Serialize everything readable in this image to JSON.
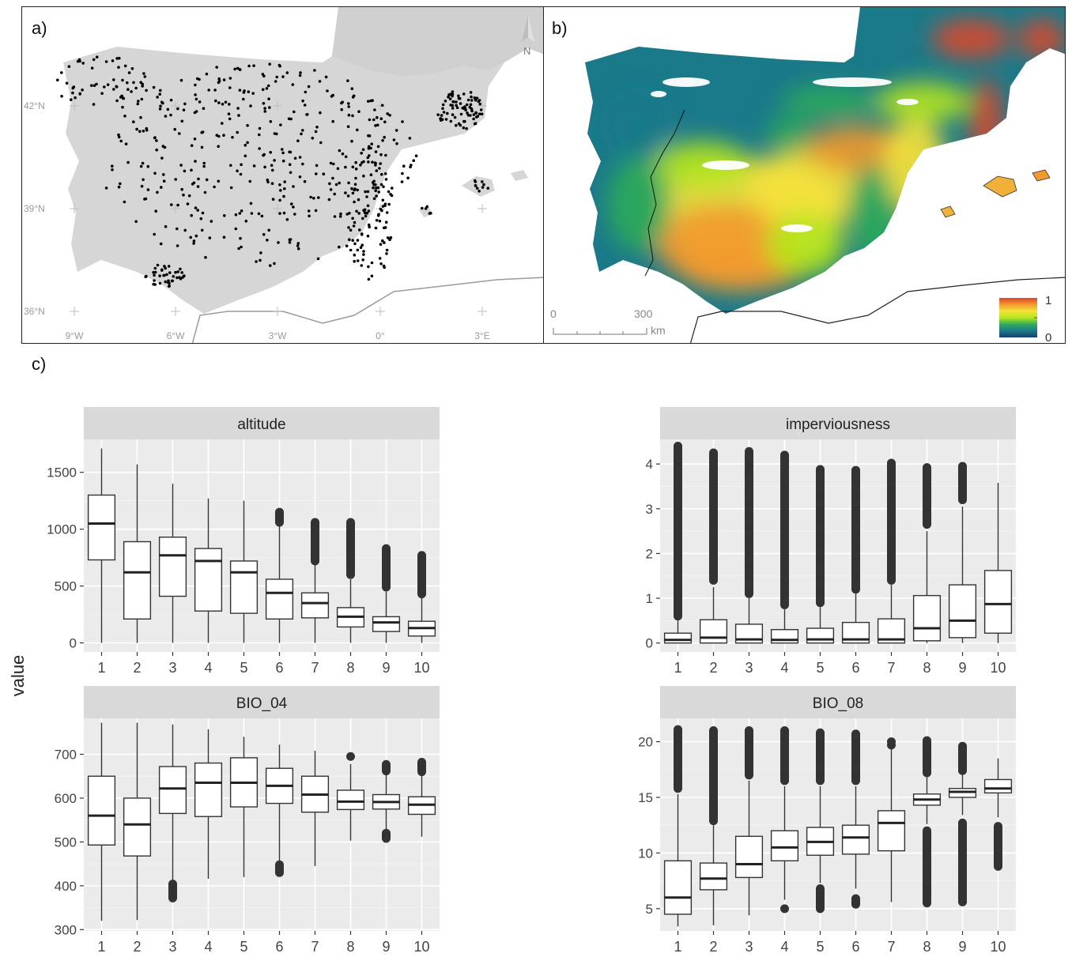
{
  "panel_a": {
    "label": "a)",
    "north_label": "N",
    "lat_labels": [
      "42°N",
      "39°N",
      "36°N"
    ],
    "lon_labels": [
      "9°W",
      "6°W",
      "3°W",
      "0°",
      "3°E"
    ]
  },
  "panel_b": {
    "label": "b)",
    "scale_labels": [
      "0",
      "300"
    ],
    "scale_unit": "km",
    "legend_max": "1",
    "legend_min": "0"
  },
  "panel_c": {
    "label": "c)",
    "y_title": "value"
  },
  "colors": {
    "facet_bg": "#ebebeb",
    "strip_bg": "#d9d9d9",
    "land": "#d6d6d6",
    "ramp": [
      "#14406b",
      "#1b7a8a",
      "#2eab5a",
      "#b5e61d",
      "#f5e23b",
      "#f29a2e",
      "#d9482b"
    ]
  },
  "chart_data": [
    {
      "type": "box",
      "facet": "altitude",
      "categories": [
        "1",
        "2",
        "3",
        "4",
        "5",
        "6",
        "7",
        "8",
        "9",
        "10"
      ],
      "ylim": [
        -80,
        1790
      ],
      "yticks": [
        0,
        500,
        1000,
        1500
      ],
      "boxes": [
        {
          "q1": 730,
          "median": 1050,
          "q3": 1300,
          "lo": 0,
          "hi": 1710,
          "outliers": []
        },
        {
          "q1": 210,
          "median": 620,
          "q3": 890,
          "lo": 0,
          "hi": 1570,
          "outliers": []
        },
        {
          "q1": 410,
          "median": 770,
          "q3": 930,
          "lo": 0,
          "hi": 1400,
          "outliers": []
        },
        {
          "q1": 280,
          "median": 720,
          "q3": 830,
          "lo": 0,
          "hi": 1270,
          "outliers": []
        },
        {
          "q1": 260,
          "median": 620,
          "q3": 720,
          "lo": 0,
          "hi": 1250,
          "outliers": []
        },
        {
          "q1": 210,
          "median": 440,
          "q3": 560,
          "lo": 0,
          "hi": 1030,
          "outliers": [
            1060,
            1090,
            1120,
            1150
          ]
        },
        {
          "q1": 220,
          "median": 350,
          "q3": 440,
          "lo": 0,
          "hi": 690,
          "outliers": [
            720,
            760,
            800,
            840,
            880,
            920,
            960,
            1000,
            1060
          ]
        },
        {
          "q1": 140,
          "median": 230,
          "q3": 310,
          "lo": 0,
          "hi": 560,
          "outliers": [
            600,
            650,
            700,
            750,
            800,
            850,
            900,
            950,
            1000,
            1060
          ]
        },
        {
          "q1": 100,
          "median": 180,
          "q3": 230,
          "lo": 0,
          "hi": 450,
          "outliers": [
            490,
            530,
            570,
            610,
            650,
            690,
            730,
            770,
            830
          ]
        },
        {
          "q1": 60,
          "median": 130,
          "q3": 190,
          "lo": 0,
          "hi": 400,
          "outliers": [
            430,
            470,
            510,
            550,
            590,
            630,
            670,
            710,
            770
          ]
        }
      ]
    },
    {
      "type": "box",
      "facet": "imperviousness",
      "categories": [
        "1",
        "2",
        "3",
        "4",
        "5",
        "6",
        "7",
        "8",
        "9",
        "10"
      ],
      "ylim": [
        -0.2,
        4.55
      ],
      "yticks": [
        0,
        1,
        2,
        3,
        4
      ],
      "boxes": [
        {
          "q1": 0.0,
          "median": 0.07,
          "q3": 0.22,
          "lo": 0,
          "hi": 0.5,
          "outliers": [
            0.6,
            0.9,
            1.2,
            1.5,
            1.8,
            2.1,
            2.4,
            2.7,
            3.0,
            3.3,
            3.6,
            3.9,
            4.2,
            4.4
          ]
        },
        {
          "q1": 0.0,
          "median": 0.12,
          "q3": 0.52,
          "lo": 0,
          "hi": 1.25,
          "outliers": [
            1.4,
            1.7,
            2.0,
            2.3,
            2.6,
            2.9,
            3.2,
            3.5,
            3.8,
            4.05,
            4.25
          ]
        },
        {
          "q1": 0.0,
          "median": 0.08,
          "q3": 0.42,
          "lo": 0,
          "hi": 1.0,
          "outliers": [
            1.1,
            1.4,
            1.7,
            2.0,
            2.3,
            2.6,
            2.9,
            3.2,
            3.5,
            3.8,
            4.05,
            4.28
          ]
        },
        {
          "q1": 0.0,
          "median": 0.07,
          "q3": 0.3,
          "lo": 0,
          "hi": 0.75,
          "outliers": [
            0.85,
            1.15,
            1.45,
            1.75,
            2.05,
            2.35,
            2.65,
            2.95,
            3.25,
            3.55,
            3.85,
            4.2
          ]
        },
        {
          "q1": 0.0,
          "median": 0.08,
          "q3": 0.33,
          "lo": 0,
          "hi": 0.8,
          "outliers": [
            0.9,
            1.2,
            1.5,
            1.8,
            2.1,
            2.4,
            2.7,
            3.0,
            3.3,
            3.6,
            3.88
          ]
        },
        {
          "q1": 0.0,
          "median": 0.08,
          "q3": 0.46,
          "lo": 0,
          "hi": 1.1,
          "outliers": [
            1.2,
            1.5,
            1.8,
            2.1,
            2.4,
            2.7,
            3.0,
            3.3,
            3.6,
            3.86
          ]
        },
        {
          "q1": 0.0,
          "median": 0.08,
          "q3": 0.54,
          "lo": 0,
          "hi": 1.3,
          "outliers": [
            1.4,
            1.7,
            2.0,
            2.3,
            2.6,
            2.9,
            3.2,
            3.5,
            3.8,
            4.02
          ]
        },
        {
          "q1": 0.05,
          "median": 0.33,
          "q3": 1.06,
          "lo": 0,
          "hi": 2.5,
          "outliers": [
            2.65,
            2.95,
            3.25,
            3.55,
            3.92
          ]
        },
        {
          "q1": 0.12,
          "median": 0.5,
          "q3": 1.3,
          "lo": 0,
          "hi": 3.05,
          "outliers": [
            3.2,
            3.45,
            3.7,
            3.95
          ]
        },
        {
          "q1": 0.22,
          "median": 0.87,
          "q3": 1.62,
          "lo": 0,
          "hi": 3.58,
          "outliers": []
        }
      ]
    },
    {
      "type": "box",
      "facet": "BIO_04",
      "categories": [
        "1",
        "2",
        "3",
        "4",
        "5",
        "6",
        "7",
        "8",
        "9",
        "10"
      ],
      "ylim": [
        297,
        782
      ],
      "yticks": [
        300,
        400,
        500,
        600,
        700
      ],
      "boxes": [
        {
          "q1": 493,
          "median": 560,
          "q3": 650,
          "lo": 320,
          "hi": 772,
          "outliers": []
        },
        {
          "q1": 468,
          "median": 540,
          "q3": 600,
          "lo": 322,
          "hi": 772,
          "outliers": []
        },
        {
          "q1": 565,
          "median": 622,
          "q3": 672,
          "lo": 412,
          "hi": 768,
          "outliers": [
            372,
            380,
            388,
            396,
            404
          ]
        },
        {
          "q1": 558,
          "median": 635,
          "q3": 680,
          "lo": 416,
          "hi": 757,
          "outliers": []
        },
        {
          "q1": 580,
          "median": 635,
          "q3": 692,
          "lo": 420,
          "hi": 740,
          "outliers": []
        },
        {
          "q1": 588,
          "median": 628,
          "q3": 668,
          "lo": 455,
          "hi": 722,
          "outliers": [
            430,
            436,
            442,
            448
          ]
        },
        {
          "q1": 568,
          "median": 608,
          "q3": 650,
          "lo": 445,
          "hi": 708,
          "outliers": []
        },
        {
          "q1": 574,
          "median": 592,
          "q3": 618,
          "lo": 503,
          "hi": 678,
          "outliers": [
            695
          ]
        },
        {
          "q1": 575,
          "median": 591,
          "q3": 608,
          "lo": 526,
          "hi": 655,
          "outliers": [
            508,
            514,
            520,
            662,
            670,
            677
          ]
        },
        {
          "q1": 563,
          "median": 585,
          "q3": 603,
          "lo": 512,
          "hi": 655,
          "outliers": [
            660,
            667,
            674,
            682
          ]
        }
      ]
    },
    {
      "type": "box",
      "facet": "BIO_08",
      "categories": [
        "1",
        "2",
        "3",
        "4",
        "5",
        "6",
        "7",
        "8",
        "9",
        "10"
      ],
      "ylim": [
        3.0,
        22.1
      ],
      "yticks": [
        5,
        10,
        15,
        20
      ],
      "boxes": [
        {
          "q1": 4.5,
          "median": 6.0,
          "q3": 9.3,
          "lo": 3.4,
          "hi": 15.3,
          "outliers": [
            15.8,
            16.4,
            17.0,
            17.6,
            18.2,
            18.8,
            19.4,
            20.0,
            20.6,
            21.1
          ]
        },
        {
          "q1": 6.7,
          "median": 7.7,
          "q3": 9.1,
          "lo": 3.5,
          "hi": 12.5,
          "outliers": [
            12.9,
            13.5,
            14.1,
            14.7,
            15.3,
            15.9,
            16.5,
            17.1,
            17.7,
            18.3,
            18.9,
            19.5,
            20.1,
            20.7,
            21.0
          ]
        },
        {
          "q1": 7.8,
          "median": 9.0,
          "q3": 11.5,
          "lo": 4.4,
          "hi": 16.5,
          "outliers": [
            17.0,
            17.6,
            18.2,
            18.8,
            19.4,
            20.0,
            20.6,
            21.0
          ]
        },
        {
          "q1": 9.3,
          "median": 10.5,
          "q3": 12.0,
          "lo": 5.8,
          "hi": 16.0,
          "outliers": [
            5.0,
            16.5,
            17.1,
            17.7,
            18.3,
            18.9,
            19.5,
            20.1,
            20.6,
            21.0
          ]
        },
        {
          "q1": 9.8,
          "median": 11.0,
          "q3": 12.3,
          "lo": 7.3,
          "hi": 16.0,
          "outliers": [
            5.0,
            5.6,
            6.2,
            6.8,
            16.5,
            17.1,
            17.7,
            18.3,
            18.9,
            19.5,
            20.1,
            20.8
          ]
        },
        {
          "q1": 9.9,
          "median": 11.4,
          "q3": 12.5,
          "lo": 6.8,
          "hi": 16.0,
          "outliers": [
            5.4,
            5.9,
            16.5,
            17.1,
            17.7,
            18.3,
            18.9,
            19.5,
            20.1,
            20.7
          ]
        },
        {
          "q1": 10.2,
          "median": 12.7,
          "q3": 13.8,
          "lo": 5.6,
          "hi": 19.5,
          "outliers": [
            19.7,
            20.0
          ]
        },
        {
          "q1": 14.3,
          "median": 14.8,
          "q3": 15.3,
          "lo": 12.6,
          "hi": 16.8,
          "outliers": [
            5.5,
            6.0,
            7.0,
            7.8,
            8.4,
            9.0,
            9.6,
            10.2,
            10.8,
            11.4,
            12.0,
            17.2,
            17.8,
            18.4,
            19.0,
            19.6,
            20.1
          ]
        },
        {
          "q1": 15.0,
          "median": 15.5,
          "q3": 15.8,
          "lo": 13.4,
          "hi": 17.0,
          "outliers": [
            5.6,
            6.0,
            8.5,
            9.1,
            9.7,
            10.3,
            10.9,
            11.5,
            12.1,
            12.7,
            17.4,
            18.0,
            18.6,
            19.2,
            19.6
          ]
        },
        {
          "q1": 15.4,
          "median": 15.8,
          "q3": 16.6,
          "lo": 13.2,
          "hi": 18.5,
          "outliers": [
            8.8,
            9.4,
            10.0,
            10.6,
            11.2,
            11.8,
            12.4
          ]
        }
      ]
    }
  ]
}
